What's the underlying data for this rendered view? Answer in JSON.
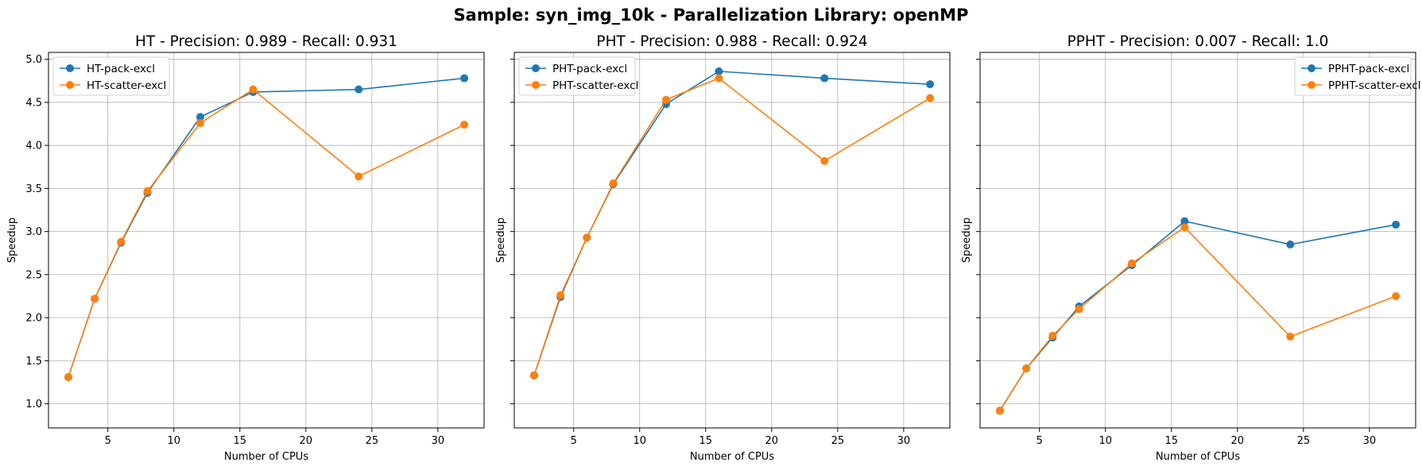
{
  "figure": {
    "suptitle": "Sample: syn_img_10k - Parallelization Library: openMP"
  },
  "chart_data": [
    {
      "type": "line",
      "title": "HT - Precision: 0.989 - Recall: 0.931",
      "xlabel": "Number of CPUs",
      "ylabel": "Speedup",
      "xlim": [
        0.5,
        33.5
      ],
      "ylim": [
        0.72,
        5.08
      ],
      "xticks": [
        5,
        10,
        15,
        20,
        25,
        30
      ],
      "yticks": [
        1.0,
        1.5,
        2.0,
        2.5,
        3.0,
        3.5,
        4.0,
        4.5,
        5.0
      ],
      "show_ytick_labels": true,
      "grid": true,
      "legend_position": "upper-left",
      "x": [
        2,
        4,
        6,
        8,
        12,
        16,
        24,
        32
      ],
      "series": [
        {
          "name": "HT-pack-excl",
          "color": "#1f77b4",
          "values": [
            1.31,
            2.22,
            2.87,
            3.45,
            4.33,
            4.62,
            4.65,
            4.78
          ]
        },
        {
          "name": "HT-scatter-excl",
          "color": "#ff7f0e",
          "values": [
            1.31,
            2.22,
            2.88,
            3.47,
            4.26,
            4.65,
            3.64,
            4.24
          ]
        }
      ]
    },
    {
      "type": "line",
      "title": "PHT - Precision: 0.988 - Recall: 0.924",
      "xlabel": "Number of CPUs",
      "ylabel": "Speedup",
      "xlim": [
        0.5,
        33.5
      ],
      "ylim": [
        0.72,
        5.08
      ],
      "xticks": [
        5,
        10,
        15,
        20,
        25,
        30
      ],
      "yticks": [
        1.0,
        1.5,
        2.0,
        2.5,
        3.0,
        3.5,
        4.0,
        4.5,
        5.0
      ],
      "show_ytick_labels": false,
      "grid": true,
      "legend_position": "upper-left",
      "x": [
        2,
        4,
        6,
        8,
        12,
        16,
        24,
        32
      ],
      "series": [
        {
          "name": "PHT-pack-excl",
          "color": "#1f77b4",
          "values": [
            1.33,
            2.24,
            2.93,
            3.55,
            4.48,
            4.86,
            4.78,
            4.71
          ]
        },
        {
          "name": "PHT-scatter-excl",
          "color": "#ff7f0e",
          "values": [
            1.33,
            2.26,
            2.93,
            3.56,
            4.53,
            4.78,
            3.82,
            4.55
          ]
        }
      ]
    },
    {
      "type": "line",
      "title": "PPHT - Precision: 0.007 - Recall: 1.0",
      "xlabel": "Number of CPUs",
      "ylabel": "Speedup",
      "xlim": [
        0.5,
        33.5
      ],
      "ylim": [
        0.72,
        5.08
      ],
      "xticks": [
        5,
        10,
        15,
        20,
        25,
        30
      ],
      "yticks": [
        1.0,
        1.5,
        2.0,
        2.5,
        3.0,
        3.5,
        4.0,
        4.5,
        5.0
      ],
      "show_ytick_labels": false,
      "grid": true,
      "legend_position": "upper-right",
      "x": [
        2,
        4,
        6,
        8,
        12,
        16,
        24,
        32
      ],
      "series": [
        {
          "name": "PPHT-pack-excl",
          "color": "#1f77b4",
          "values": [
            0.92,
            1.41,
            1.77,
            2.13,
            2.61,
            3.12,
            2.85,
            3.08
          ]
        },
        {
          "name": "PPHT-scatter-excl",
          "color": "#ff7f0e",
          "values": [
            0.92,
            1.41,
            1.79,
            2.1,
            2.63,
            3.05,
            1.78,
            2.25
          ]
        }
      ]
    }
  ]
}
